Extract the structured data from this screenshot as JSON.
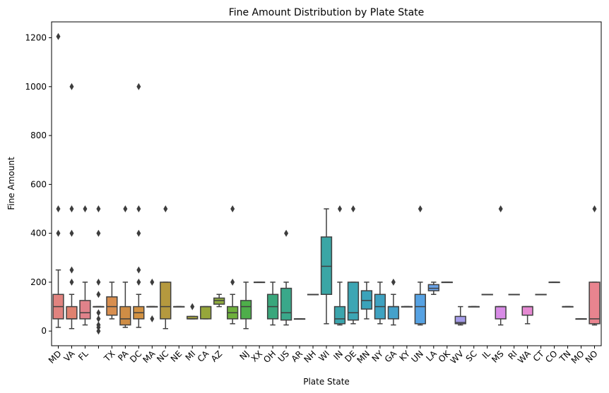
{
  "chart_data": {
    "type": "box",
    "title": "Fine Amount Distribution by Plate State",
    "xlabel": "Plate State",
    "ylabel": "Fine Amount",
    "ylim": [
      -60,
      1265
    ],
    "yticks": [
      0,
      200,
      400,
      600,
      800,
      1000,
      1200
    ],
    "categories": [
      "MD",
      "VA",
      "FL",
      "",
      "TX",
      "PA",
      "DC",
      "MA",
      "NC",
      "NE",
      "MI",
      "CA",
      "AZ",
      "",
      "NJ",
      "XX",
      "OH",
      "US",
      "AR",
      "NH",
      "WI",
      "IN",
      "DE",
      "MN",
      "NY",
      "GA",
      "KY",
      "UN",
      "LA",
      "OK",
      "WV",
      "SC",
      "IL",
      "MS",
      "RI",
      "WA",
      "CT",
      "CO",
      "TN",
      "MO",
      "NO"
    ],
    "boxes": [
      {
        "q1": 50,
        "median": 100,
        "q3": 150,
        "wlo": 15,
        "whi": 250,
        "outliers": [
          400,
          500,
          1205
        ],
        "color": "#e1837f"
      },
      {
        "q1": 50,
        "median": 50,
        "q3": 100,
        "wlo": 10,
        "whi": 150,
        "outliers": [
          200,
          250,
          400,
          500,
          1000
        ],
        "color": "#e0826f"
      },
      {
        "q1": 50,
        "median": 75,
        "q3": 125,
        "wlo": 25,
        "whi": 200,
        "outliers": [
          500
        ],
        "color": "#e0828a"
      },
      {
        "q1": 100,
        "median": 100,
        "q3": 100,
        "wlo": 100,
        "whi": 100,
        "outliers": [
          0,
          15,
          25,
          50,
          75,
          150,
          200,
          400,
          500
        ],
        "color": "#d28a58"
      },
      {
        "q1": 65,
        "median": 100,
        "q3": 140,
        "wlo": 50,
        "whi": 200,
        "outliers": [],
        "color": "#d88e4f"
      },
      {
        "q1": 25,
        "median": 50,
        "q3": 100,
        "wlo": 15,
        "whi": 200,
        "outliers": [
          500
        ],
        "color": "#cf8d45"
      },
      {
        "q1": 50,
        "median": 75,
        "q3": 100,
        "wlo": 15,
        "whi": 150,
        "outliers": [
          200,
          250,
          400,
          500,
          1000
        ],
        "color": "#d29142"
      },
      {
        "q1": 100,
        "median": 100,
        "q3": 100,
        "wlo": 100,
        "whi": 100,
        "outliers": [
          50,
          200
        ],
        "color": "#bf9a4a"
      },
      {
        "q1": 50,
        "median": 100,
        "q3": 200,
        "wlo": 10,
        "whi": 200,
        "outliers": [
          500
        ],
        "color": "#b5993e"
      },
      {
        "q1": 100,
        "median": 100,
        "q3": 100,
        "wlo": 100,
        "whi": 100,
        "outliers": [],
        "color": "#a99d3d"
      },
      {
        "q1": 50,
        "median": 50,
        "q3": 60,
        "wlo": 50,
        "whi": 60,
        "outliers": [
          100
        ],
        "color": "#a1a03d"
      },
      {
        "q1": 50,
        "median": 100,
        "q3": 100,
        "wlo": 50,
        "whi": 100,
        "outliers": [],
        "color": "#96a63a"
      },
      {
        "q1": 110,
        "median": 125,
        "q3": 135,
        "wlo": 100,
        "whi": 150,
        "outliers": [],
        "color": "#8fab3e"
      },
      {
        "q1": 50,
        "median": 75,
        "q3": 100,
        "wlo": 30,
        "whi": 150,
        "outliers": [
          200,
          500
        ],
        "color": "#6eb03d"
      },
      {
        "q1": 50,
        "median": 100,
        "q3": 125,
        "wlo": 10,
        "whi": 200,
        "outliers": [],
        "color": "#4eae4a"
      },
      {
        "q1": 200,
        "median": 200,
        "q3": 200,
        "wlo": 200,
        "whi": 200,
        "outliers": [],
        "color": "#3faf6a"
      },
      {
        "q1": 50,
        "median": 100,
        "q3": 150,
        "wlo": 25,
        "whi": 200,
        "outliers": [],
        "color": "#3aa77c"
      },
      {
        "q1": 45,
        "median": 75,
        "q3": 175,
        "wlo": 25,
        "whi": 200,
        "outliers": [
          400
        ],
        "color": "#3aa88a"
      },
      {
        "q1": 50,
        "median": 50,
        "q3": 50,
        "wlo": 50,
        "whi": 50,
        "outliers": [],
        "color": "#39a895"
      },
      {
        "q1": 150,
        "median": 150,
        "q3": 150,
        "wlo": 150,
        "whi": 150,
        "outliers": [],
        "color": "#3aa89e"
      },
      {
        "q1": 150,
        "median": 265,
        "q3": 385,
        "wlo": 30,
        "whi": 500,
        "outliers": [],
        "color": "#3aa6a5"
      },
      {
        "q1": 30,
        "median": 50,
        "q3": 100,
        "wlo": 25,
        "whi": 200,
        "outliers": [
          500
        ],
        "color": "#3ba5ad"
      },
      {
        "q1": 45,
        "median": 75,
        "q3": 200,
        "wlo": 30,
        "whi": 200,
        "outliers": [
          500
        ],
        "color": "#3ca6b4"
      },
      {
        "q1": 90,
        "median": 125,
        "q3": 165,
        "wlo": 50,
        "whi": 200,
        "outliers": [],
        "color": "#3ba3ba"
      },
      {
        "q1": 50,
        "median": 100,
        "q3": 150,
        "wlo": 30,
        "whi": 200,
        "outliers": [],
        "color": "#3ea2c1"
      },
      {
        "q1": 50,
        "median": 100,
        "q3": 100,
        "wlo": 25,
        "whi": 150,
        "outliers": [
          200
        ],
        "color": "#45a1ca"
      },
      {
        "q1": 100,
        "median": 100,
        "q3": 100,
        "wlo": 100,
        "whi": 100,
        "outliers": [],
        "color": "#4aa3d4"
      },
      {
        "q1": 30,
        "median": 100,
        "q3": 150,
        "wlo": 25,
        "whi": 200,
        "outliers": [
          500
        ],
        "color": "#56a2e3"
      },
      {
        "q1": 165,
        "median": 175,
        "q3": 190,
        "wlo": 150,
        "whi": 200,
        "outliers": [],
        "color": "#6aa3e8"
      },
      {
        "q1": 200,
        "median": 200,
        "q3": 200,
        "wlo": 200,
        "whi": 200,
        "outliers": [],
        "color": "#8aa3ea"
      },
      {
        "q1": 30,
        "median": 35,
        "q3": 60,
        "wlo": 25,
        "whi": 100,
        "outliers": [],
        "color": "#a59ce9"
      },
      {
        "q1": 100,
        "median": 100,
        "q3": 100,
        "wlo": 100,
        "whi": 100,
        "outliers": [],
        "color": "#b696e9"
      },
      {
        "q1": 150,
        "median": 150,
        "q3": 150,
        "wlo": 150,
        "whi": 150,
        "outliers": [],
        "color": "#c590e6"
      },
      {
        "q1": 50,
        "median": 100,
        "q3": 100,
        "wlo": 25,
        "whi": 100,
        "outliers": [
          500
        ],
        "color": "#d88be6"
      },
      {
        "q1": 150,
        "median": 150,
        "q3": 150,
        "wlo": 150,
        "whi": 150,
        "outliers": [],
        "color": "#df87de"
      },
      {
        "q1": 65,
        "median": 100,
        "q3": 100,
        "wlo": 30,
        "whi": 100,
        "outliers": [],
        "color": "#e589d2"
      },
      {
        "q1": 150,
        "median": 150,
        "q3": 150,
        "wlo": 150,
        "whi": 150,
        "outliers": [],
        "color": "#e789c4"
      },
      {
        "q1": 200,
        "median": 200,
        "q3": 200,
        "wlo": 200,
        "whi": 200,
        "outliers": [],
        "color": "#e88aba"
      },
      {
        "q1": 100,
        "median": 100,
        "q3": 100,
        "wlo": 100,
        "whi": 100,
        "outliers": [],
        "color": "#e889ae"
      },
      {
        "q1": 50,
        "median": 50,
        "q3": 50,
        "wlo": 50,
        "whi": 50,
        "outliers": [],
        "color": "#e888a2"
      },
      {
        "q1": 30,
        "median": 50,
        "q3": 200,
        "wlo": 25,
        "whi": 200,
        "outliers": [
          500
        ],
        "color": "#e9848f"
      }
    ]
  }
}
